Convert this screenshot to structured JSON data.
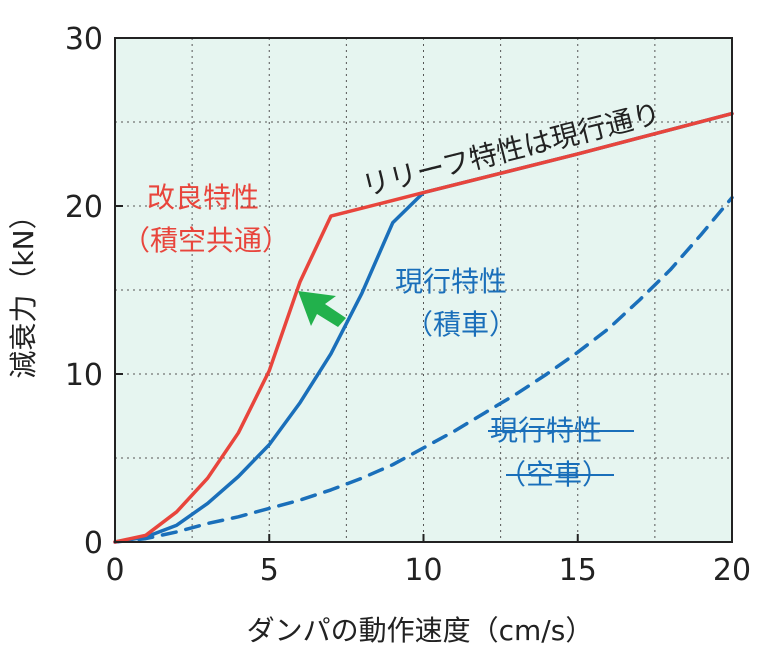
{
  "chart_data": {
    "type": "line",
    "xlabel": "ダンパの動作速度（cm/s）",
    "ylabel": "減衰力（kN）",
    "xlim": [
      0,
      20
    ],
    "ylim": [
      0,
      30
    ],
    "xticks": [
      0,
      5,
      10,
      15,
      20
    ],
    "yticks": [
      0,
      10,
      20,
      30
    ],
    "grid": true,
    "background_color": "#e6f5f0",
    "series": [
      {
        "color": "#e8453c",
        "style": "solid",
        "x": [
          0,
          1,
          2,
          3,
          4,
          5,
          6,
          7,
          10,
          15,
          20
        ],
        "y": [
          0,
          0.4,
          1.8,
          3.8,
          6.5,
          10.2,
          15.5,
          19.4,
          20.8,
          23.1,
          25.5
        ]
      },
      {
        "color": "#1a6fba",
        "style": "solid",
        "x": [
          0,
          1,
          2,
          3,
          4,
          5,
          6,
          7,
          8,
          9,
          10,
          15,
          20
        ],
        "y": [
          0,
          0.3,
          1.0,
          2.3,
          3.9,
          5.8,
          8.3,
          11.2,
          14.8,
          19.0,
          20.8,
          23.1,
          25.5
        ]
      },
      {
        "color": "#1a6fba",
        "style": "dashed",
        "x": [
          0,
          1,
          2,
          3,
          4,
          5,
          6,
          7,
          8,
          9,
          10,
          11,
          12,
          13,
          14,
          15,
          16,
          17,
          18,
          19,
          20
        ],
        "y": [
          0,
          0.2,
          0.6,
          1.1,
          1.5,
          2.0,
          2.5,
          3.1,
          3.8,
          4.6,
          5.6,
          6.6,
          7.7,
          8.8,
          10.0,
          11.3,
          12.7,
          14.4,
          16.2,
          18.3,
          20.5
        ]
      }
    ],
    "annotations": [
      {
        "id": "relief",
        "text": "リリーフ特性は現行通り",
        "color": "#222222"
      },
      {
        "id": "improved_1",
        "text": "改良特性",
        "color": "#e8453c"
      },
      {
        "id": "improved_2",
        "text": "（積空共通）",
        "color": "#e8453c"
      },
      {
        "id": "current_loaded_1",
        "text": "現行特性",
        "color": "#1a6fba"
      },
      {
        "id": "current_loaded_2",
        "text": "（積車）",
        "color": "#1a6fba"
      },
      {
        "id": "current_empty_1",
        "text": "現行特性",
        "color": "#1a6fba",
        "strikethrough": true
      },
      {
        "id": "current_empty_2",
        "text": "（空車）",
        "color": "#1a6fba",
        "strikethrough": true
      }
    ],
    "arrow_color": "#22b14c"
  }
}
